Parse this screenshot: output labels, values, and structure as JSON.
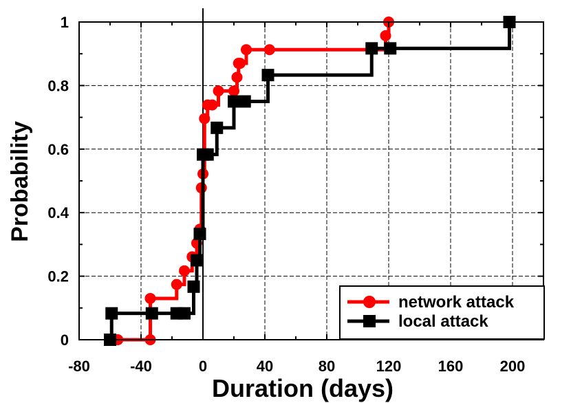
{
  "chart_data": {
    "type": "line",
    "title": "",
    "xlabel": "Duration (days)",
    "ylabel": "Probability",
    "xlim": [
      -80,
      220
    ],
    "ylim": [
      0,
      1
    ],
    "xticks": [
      -80,
      -40,
      0,
      40,
      80,
      120,
      160,
      200
    ],
    "yticks": [
      0,
      0.2,
      0.4,
      0.6,
      0.8,
      1
    ],
    "xtick_labels": [
      "-80",
      "-40",
      "0",
      "40",
      "80",
      "120",
      "160",
      "200"
    ],
    "ytick_labels": [
      "0",
      "0.2",
      "0.4",
      "0.6",
      "0.8",
      "1"
    ],
    "grid": true,
    "legend_position": "bottom-right",
    "series": [
      {
        "name": "network attack",
        "color": "#ff0000",
        "marker": "circle",
        "step": true,
        "x": [
          -55,
          -34,
          -34,
          -17,
          -12,
          -7,
          -4,
          -2,
          -1,
          0,
          1,
          3,
          6,
          10,
          20,
          22,
          23,
          24,
          28,
          43,
          118,
          120
        ],
        "y": [
          0,
          0,
          0.13,
          0.174,
          0.217,
          0.261,
          0.304,
          0.348,
          0.478,
          0.522,
          0.696,
          0.739,
          0.739,
          0.783,
          0.783,
          0.826,
          0.87,
          0.87,
          0.913,
          0.913,
          0.957,
          1.0
        ]
      },
      {
        "name": "local attack",
        "color": "#000000",
        "marker": "square",
        "step": true,
        "x": [
          -60,
          -59,
          -33,
          -17,
          -12,
          -6,
          -4,
          -2,
          0,
          3,
          9,
          20,
          27,
          42,
          109,
          121,
          198
        ],
        "y": [
          0,
          0.083,
          0.083,
          0.083,
          0.083,
          0.167,
          0.25,
          0.333,
          0.583,
          0.583,
          0.667,
          0.75,
          0.75,
          0.833,
          0.917,
          0.917,
          1.0
        ]
      }
    ]
  }
}
